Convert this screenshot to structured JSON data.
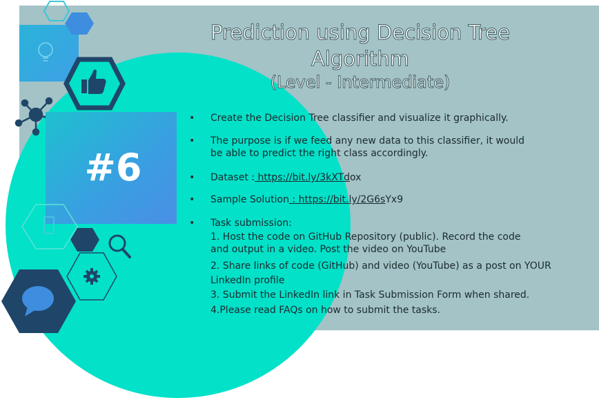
{
  "slide": {
    "title_line1": "Prediction using Decision Tree",
    "title_line2": "Algorithm",
    "subtitle": "(Level - Intermediate)",
    "task_number": "#6",
    "colors": {
      "panel": "#a3c3c7",
      "circle": "#03e1c9",
      "dark_navy": "#1f4668",
      "accent_blue": "#3f8ddf"
    },
    "icons": [
      "hexagon-outline-icon",
      "hexagon-blue-icon",
      "bulb-icon",
      "thumbs-up-icon",
      "network-icon",
      "phone-icon",
      "magnifier-icon",
      "gear-icon",
      "chat-bubble-icon"
    ]
  },
  "bullets": {
    "b1": "Create the Decision Tree classifier and visualize it graphically.",
    "b2_line1": "The purpose is if we feed any new data to this  classifier, it would",
    "b2_line2": "be able to predict the right class accordingly.",
    "b3_label": "Dataset :",
    "b3_link": " https://bit.ly/3kXTd",
    "b3_tail": "ox",
    "b4_label": "Sample Solution",
    "b4_link": " : https://bit.ly/2G6s",
    "b4_tail": "Yx9",
    "b5_label": "Task submission:",
    "s1_line1": "1. Host the code on GitHub Repository (public). Record the code",
    "s1_line2": "and output in a video. Post the video on YouTube",
    "s2_line1": "2. Share links of code (GitHub) and video (YouTube) as a post on YOUR",
    "s2_line2": "LinkedIn profile",
    "s3": "3. Submit the LinkedIn link in Task Submission Form when shared.",
    "s4": "4.Please read FAQs on how to submit the tasks."
  }
}
